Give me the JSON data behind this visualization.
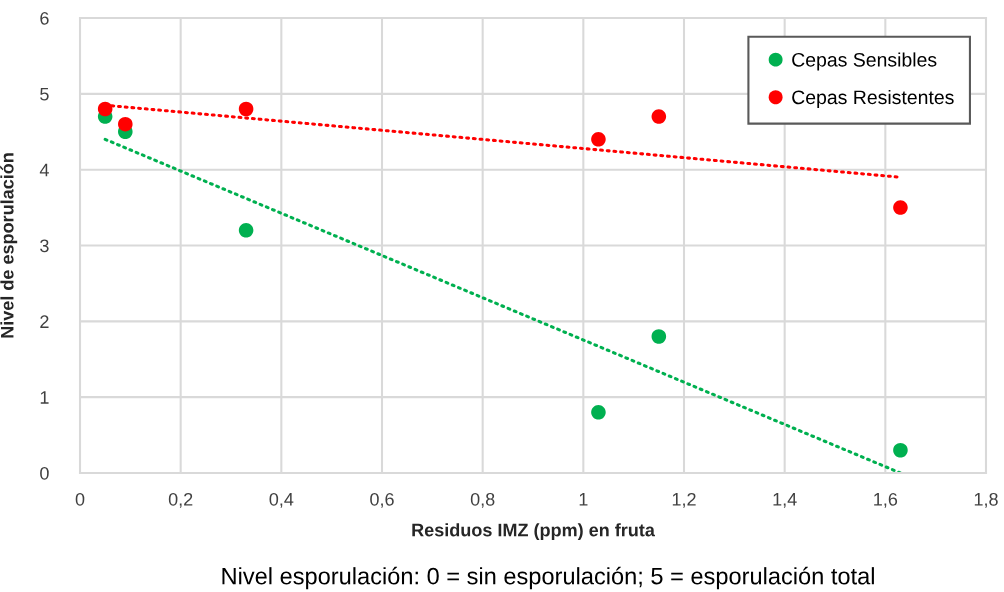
{
  "chart_data": {
    "type": "scatter",
    "xlabel": "Residuos IMZ (ppm) en fruta",
    "ylabel": "Nivel de esporulación",
    "annotations": [
      "Nivel esporulación: 0 = sin esporulación; 5 = esporulación total"
    ],
    "series": [
      {
        "name": "Cepas Sensibles",
        "color": "#00b050",
        "x": [
          0.05,
          0.09,
          0.33,
          1.03,
          1.15,
          1.63
        ],
        "values": [
          4.7,
          4.5,
          3.2,
          0.8,
          1.8,
          0.3
        ]
      },
      {
        "name": "Cepas Resistentes",
        "color": "#ff0000",
        "x": [
          0.05,
          0.09,
          0.33,
          1.03,
          1.15,
          1.63
        ],
        "values": [
          4.8,
          4.6,
          4.8,
          4.4,
          4.7,
          3.5
        ]
      },
      {
        "type": "line",
        "color": "#00b050",
        "x": [
          0.05,
          1.63
        ],
        "values": [
          4.4,
          0.0
        ],
        "line_style": "dotted",
        "marker": "none"
      },
      {
        "type": "line",
        "color": "#ff0000",
        "x": [
          0.05,
          1.63
        ],
        "values": [
          4.85,
          3.9
        ],
        "line_style": "dotted",
        "marker": "none"
      }
    ],
    "xlim": [
      0,
      1.8
    ],
    "xticks": [
      0,
      {
        "value": 0.2,
        "label": "0,2"
      },
      {
        "value": 0.4,
        "label": "0,4"
      },
      {
        "value": 0.6,
        "label": "0,6"
      },
      {
        "value": 0.8,
        "label": "0,8"
      },
      1,
      {
        "value": 1.2,
        "label": "1,2"
      },
      {
        "value": 1.4,
        "label": "1,4"
      },
      {
        "value": 1.6,
        "label": "1,6"
      },
      {
        "value": 1.8,
        "label": "1,8"
      }
    ],
    "ylim": [
      0,
      6
    ],
    "yticks": [
      0,
      1,
      2,
      3,
      4,
      5,
      6
    ],
    "grid": true,
    "legend": "top right",
    "marker": "circle"
  }
}
